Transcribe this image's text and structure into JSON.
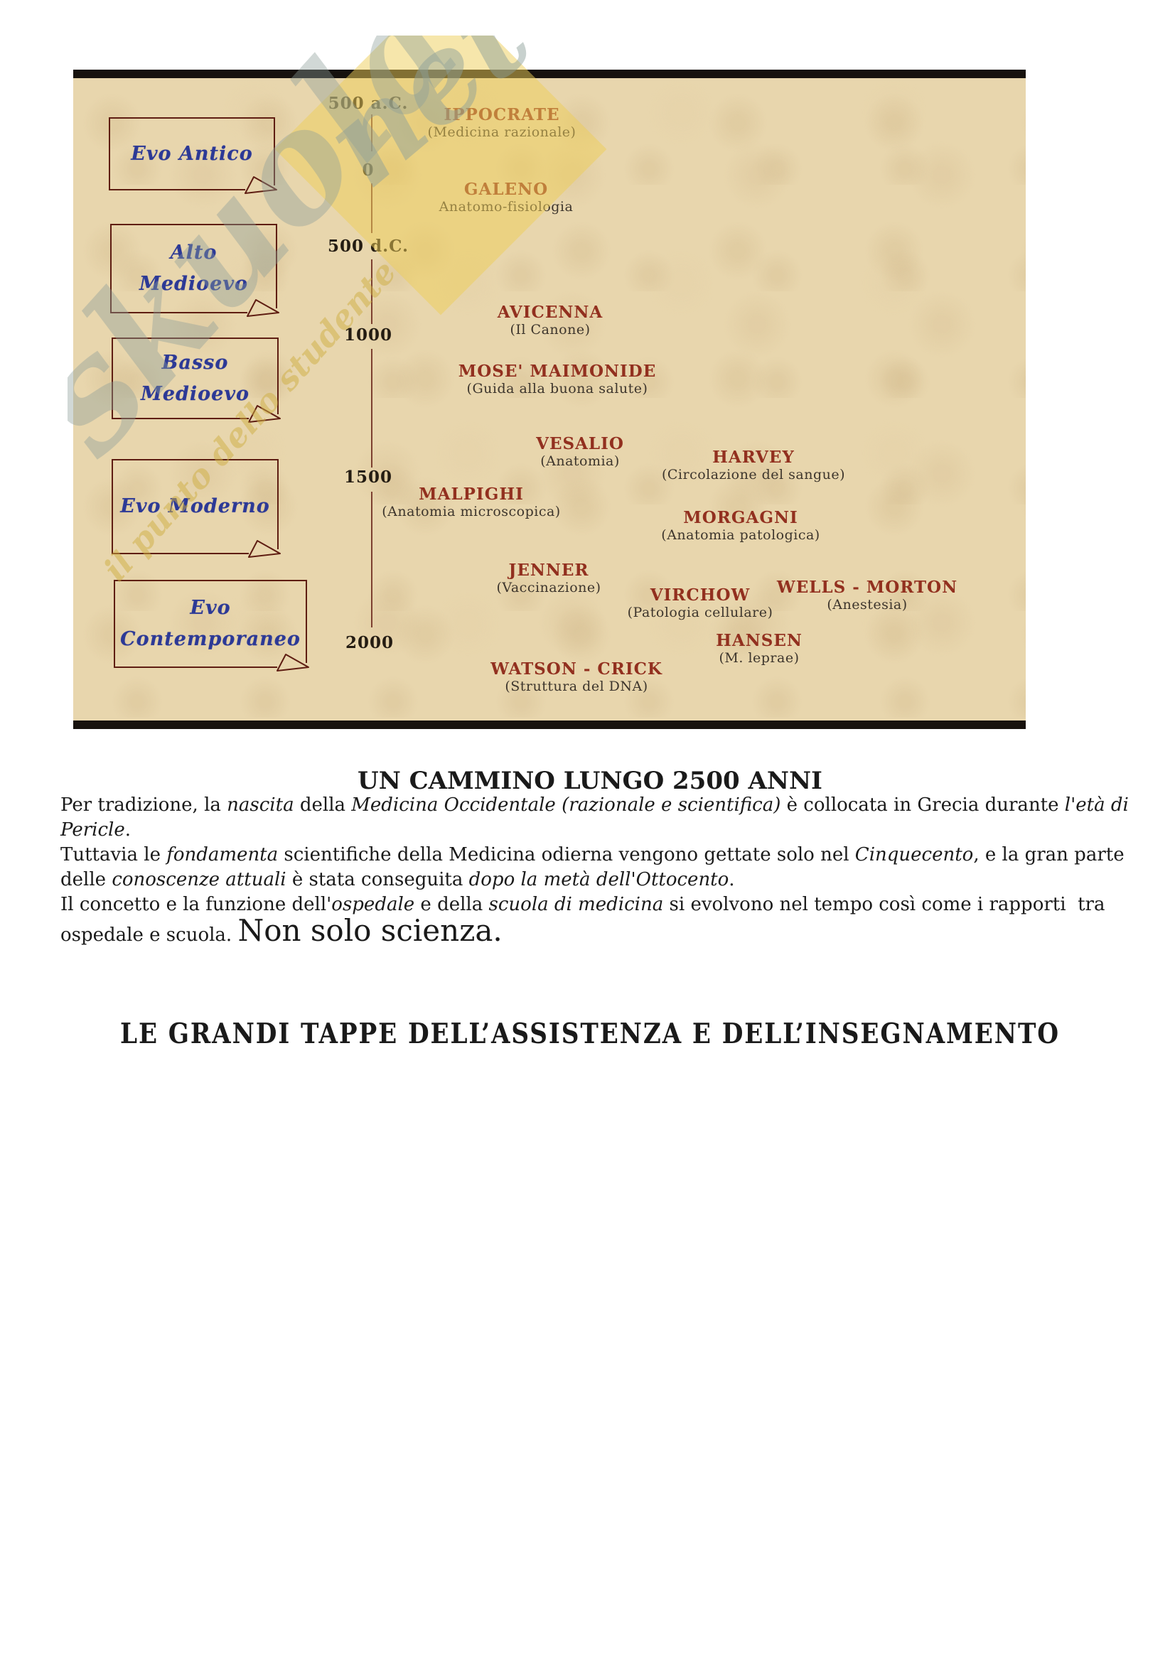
{
  "colors": {
    "parchment": "#e8d6ad",
    "box_border": "#5e1d12",
    "era_text": "#2c3996",
    "scientist_name": "#92301f",
    "scientist_detail": "#3d352c",
    "axis_text": "#241c12",
    "axis_line": "#7d4030",
    "watermark_yellow": "#eecd58",
    "watermark_grey": "#8c9e98",
    "figure_border": "#17120e"
  },
  "figure": {
    "type": "timeline",
    "eras": [
      {
        "lines": [
          "Evo Antico"
        ]
      },
      {
        "lines": [
          "Alto",
          "Medioevo"
        ]
      },
      {
        "lines": [
          "Basso",
          "Medioevo"
        ]
      },
      {
        "lines": [
          "Evo Moderno"
        ]
      },
      {
        "lines": [
          "Evo",
          "Contemporaneo"
        ]
      }
    ],
    "axis": [
      "500 a.C.",
      "0",
      "500 d.C.",
      "1000",
      "1500",
      "2000"
    ],
    "scientists": [
      {
        "name": "IPPOCRATE",
        "detail": "(Medicina razionale)"
      },
      {
        "name": "GALENO",
        "detail": "Anatomo-fisiologia"
      },
      {
        "name": "AVICENNA",
        "detail": "(Il Canone)"
      },
      {
        "name": "MOSE' MAIMONIDE",
        "detail": "(Guida alla buona salute)"
      },
      {
        "name": "VESALIO",
        "detail": "(Anatomia)"
      },
      {
        "name": "HARVEY",
        "detail": "(Circolazione del sangue)"
      },
      {
        "name": "MALPIGHI",
        "detail": "(Anatomia microscopica)"
      },
      {
        "name": "MORGAGNI",
        "detail": "(Anatomia patologica)"
      },
      {
        "name": "JENNER",
        "detail": "(Vaccinazione)"
      },
      {
        "name": "VIRCHOW",
        "detail": "(Patologia cellulare)"
      },
      {
        "name": "WELLS - MORTON",
        "detail": "(Anestesia)"
      },
      {
        "name": "HANSEN",
        "detail": "(M. leprae)"
      },
      {
        "name": "WATSON - CRICK",
        "detail": "(Struttura del DNA)"
      }
    ],
    "watermark": {
      "brand": "skuola",
      "brand_net": "net",
      "tagline": "il punto dello studente"
    }
  },
  "article": {
    "title": "UN CAMMINO LUNGO 2500 ANNI",
    "lines": [
      {
        "runs": [
          {
            "t": "Per tradizione, la "
          },
          {
            "t": "nascita",
            "i": 1
          },
          {
            "t": " della "
          },
          {
            "t": "Medicina Occidentale",
            "i": 1
          },
          {
            "t": " "
          },
          {
            "t": "(razionale e scientifica)",
            "i": 1
          },
          {
            "t": " è collocata in Grecia durante "
          },
          {
            "t": "l'età di",
            "i": 1
          }
        ]
      },
      {
        "runs": [
          {
            "t": "Pericle",
            "i": 1
          },
          {
            "t": "."
          }
        ]
      },
      {
        "runs": [
          {
            "t": "Tuttavia le "
          },
          {
            "t": "fondamenta",
            "i": 1
          },
          {
            "t": " scientifiche della Medicina odierna vengono gettate solo nel "
          },
          {
            "t": "Cinquecento",
            "i": 1
          },
          {
            "t": ", e la gran parte"
          }
        ]
      },
      {
        "runs": [
          {
            "t": "delle "
          },
          {
            "t": "conoscenze attuali",
            "i": 1
          },
          {
            "t": " è stata conseguita "
          },
          {
            "t": "dopo la metà dell'Ottocento",
            "i": 1
          },
          {
            "t": "."
          }
        ]
      },
      {
        "runs": [
          {
            "t": "Il concetto e la funzione dell'"
          },
          {
            "t": "ospedale",
            "i": 1
          },
          {
            "t": " e della "
          },
          {
            "t": "scuola di medicina",
            "i": 1
          },
          {
            "t": " si evolvono nel tempo così come i rapporti  tra"
          }
        ]
      },
      {
        "runs": [
          {
            "t": "ospedale e scuola. "
          },
          {
            "t": "Non solo scienza.",
            "big": 1
          }
        ]
      }
    ],
    "subtitle": "LE GRANDI TAPPE DELL’ASSISTENZA E DELL’INSEGNAMENTO"
  }
}
